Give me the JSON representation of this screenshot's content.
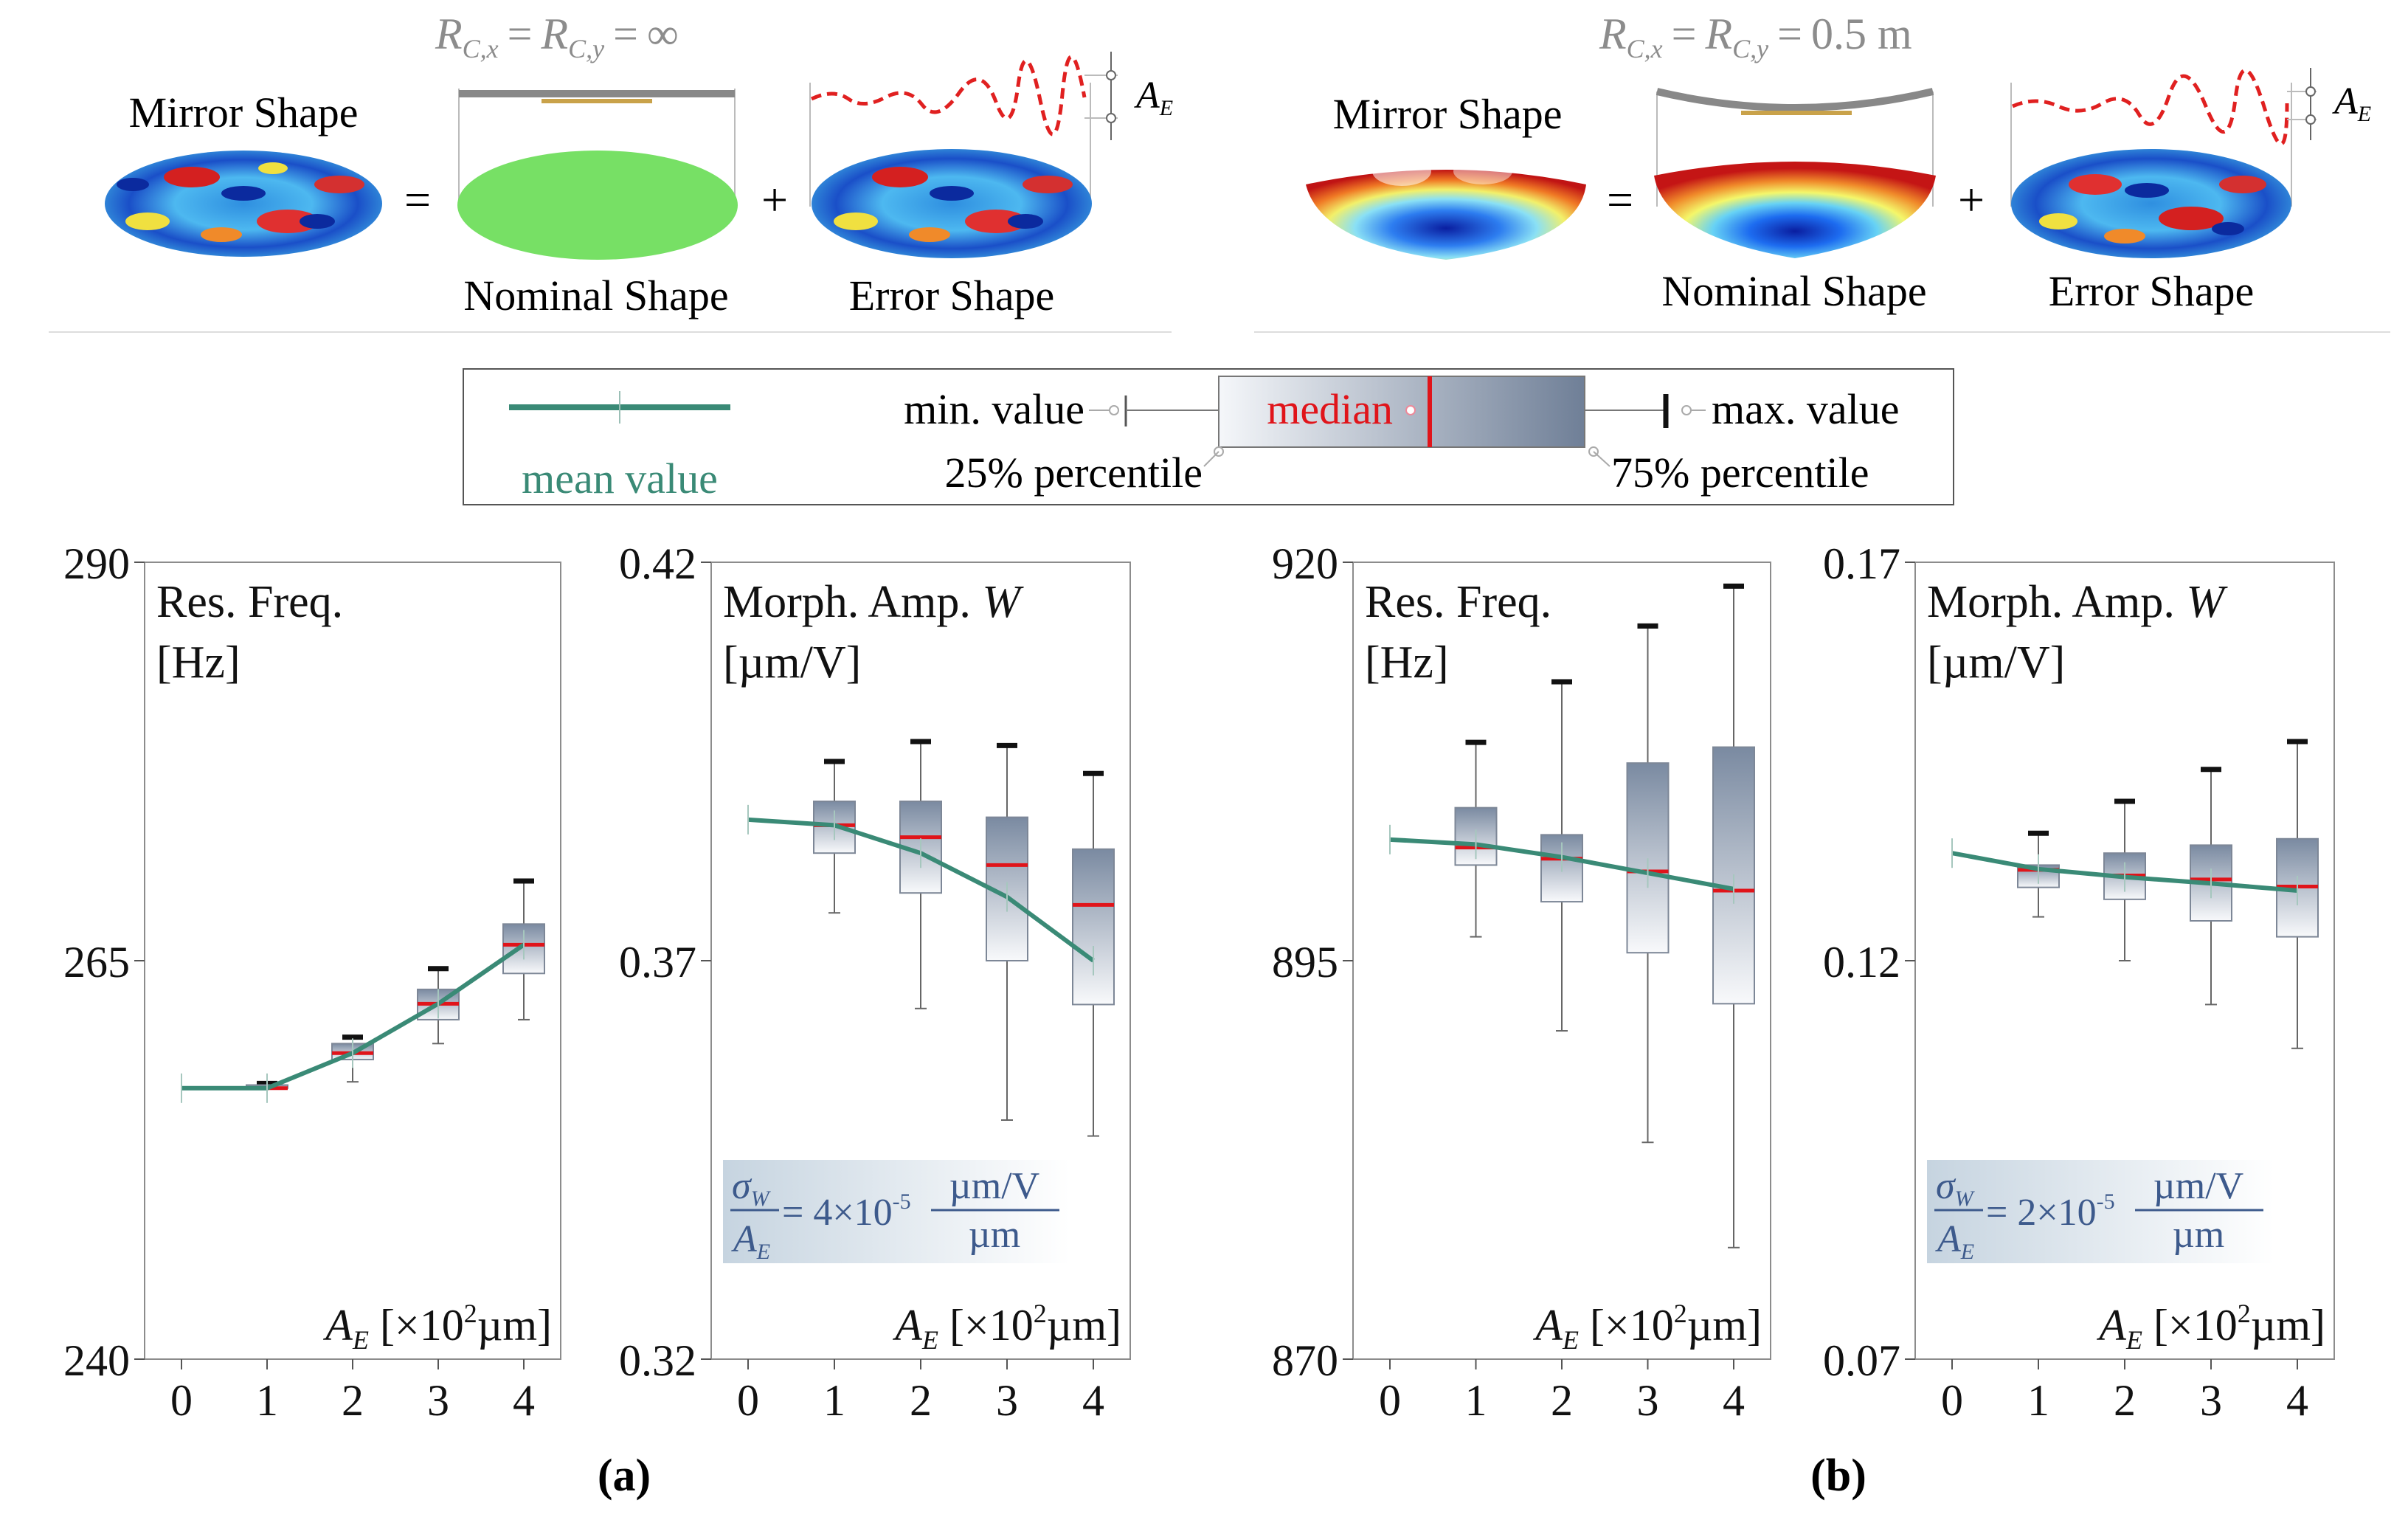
{
  "top": {
    "a": {
      "condition": {
        "R": "R",
        "sub_x": "C,x",
        "sub_y": "C,y",
        "eq": "=",
        "value": "∞"
      },
      "mirror_label": "Mirror Shape",
      "nominal_label": "Nominal Shape",
      "error_label": "Error Shape",
      "equals": "=",
      "plus": "+",
      "ae": {
        "A": "A",
        "sub": "E"
      }
    },
    "b": {
      "condition": {
        "R": "R",
        "sub_x": "C,x",
        "sub_y": "C,y",
        "eq": "=",
        "value": "0.5 m"
      },
      "mirror_label": "Mirror Shape",
      "nominal_label": "Nominal Shape",
      "error_label": "Error Shape",
      "equals": "=",
      "plus": "+",
      "ae": {
        "A": "A",
        "sub": "E"
      }
    }
  },
  "legend": {
    "mean": "mean value",
    "min": "min. value",
    "median": "median",
    "max": "max. value",
    "p25": "25% percentile",
    "p75": "75% percentile"
  },
  "panel_labels": {
    "a": "(a)",
    "b": "(b)"
  },
  "colors": {
    "mean_line": "#3a8a76",
    "median": "#e0141a",
    "box_dark": "#6f7f97",
    "box_light": "#f4f6f9",
    "whisker": "#666666",
    "sigma_text": "#3d5a8c",
    "grey_text": "#8c8c8c"
  },
  "chart_data": [
    {
      "type": "box",
      "title": "Res. Freq.",
      "unit": "[Hz]",
      "xlabel": {
        "A": "A",
        "sub": "E",
        "rest": "[×10",
        "sup": "2",
        "unit": "µm]"
      },
      "ylim": [
        240,
        290
      ],
      "yticks": [
        240,
        265,
        290
      ],
      "yticklabels": [
        "240",
        "265",
        "290"
      ],
      "xticks": [
        0,
        1,
        2,
        3,
        4
      ],
      "mean": [
        257,
        257,
        259.2,
        262.3,
        266
      ],
      "boxes": [
        {
          "x": 1,
          "min": 257,
          "q1": 257,
          "median": 257,
          "q3": 257.2,
          "max": 257.3
        },
        {
          "x": 2,
          "min": 257.4,
          "q1": 258.8,
          "median": 259.2,
          "q3": 259.8,
          "max": 260.2
        },
        {
          "x": 3,
          "min": 259.8,
          "q1": 261.3,
          "median": 262.3,
          "q3": 263.2,
          "max": 264.5
        },
        {
          "x": 4,
          "min": 261.3,
          "q1": 264.2,
          "median": 266,
          "q3": 267.3,
          "max": 270
        }
      ],
      "annotation": null
    },
    {
      "type": "box",
      "title": "Morph. Amp. ",
      "title_var": "W",
      "unit": "[µm/V]",
      "xlabel": {
        "A": "A",
        "sub": "E",
        "rest": "[×10",
        "sup": "2",
        "unit": "µm]"
      },
      "ylim": [
        0.32,
        0.42
      ],
      "yticks": [
        0.32,
        0.37,
        0.42
      ],
      "yticklabels": [
        "0.32",
        "0.37",
        "0.42"
      ],
      "xticks": [
        0,
        1,
        2,
        3,
        4
      ],
      "mean": [
        0.3877,
        0.387,
        0.3835,
        0.378,
        0.37
      ],
      "boxes": [
        {
          "x": 1,
          "min": 0.376,
          "q1": 0.3835,
          "median": 0.387,
          "q3": 0.39,
          "max": 0.395
        },
        {
          "x": 2,
          "min": 0.364,
          "q1": 0.3785,
          "median": 0.3855,
          "q3": 0.39,
          "max": 0.3975
        },
        {
          "x": 3,
          "min": 0.35,
          "q1": 0.37,
          "median": 0.382,
          "q3": 0.388,
          "max": 0.397
        },
        {
          "x": 4,
          "min": 0.348,
          "q1": 0.3645,
          "median": 0.377,
          "q3": 0.384,
          "max": 0.3935
        }
      ],
      "annotation": {
        "sigma": "σ",
        "sigma_sub": "W",
        "A": "A",
        "A_sub": "E",
        "eq": "= 4×10",
        "exp": "-5",
        "num": "µm/V",
        "den": "µm"
      }
    },
    {
      "type": "box",
      "title": "Res. Freq.",
      "unit": "[Hz]",
      "xlabel": {
        "A": "A",
        "sub": "E",
        "rest": "[×10",
        "sup": "2",
        "unit": "µm]"
      },
      "ylim": [
        870,
        920
      ],
      "yticks": [
        870,
        895,
        920
      ],
      "yticklabels": [
        "870",
        "895",
        "920"
      ],
      "xticks": [
        0,
        1,
        2,
        3,
        4
      ],
      "mean": [
        902.6,
        902.3,
        901.5,
        900.5,
        899.5
      ],
      "boxes": [
        {
          "x": 1,
          "min": 896.5,
          "q1": 901.0,
          "median": 902.1,
          "q3": 904.6,
          "max": 908.7
        },
        {
          "x": 2,
          "min": 890.6,
          "q1": 898.7,
          "median": 901.4,
          "q3": 902.9,
          "max": 912.5
        },
        {
          "x": 3,
          "min": 883.6,
          "q1": 895.5,
          "median": 900.6,
          "q3": 907.4,
          "max": 916.0
        },
        {
          "x": 4,
          "min": 877.0,
          "q1": 892.3,
          "median": 899.4,
          "q3": 908.4,
          "max": 918.5
        }
      ],
      "annotation": null
    },
    {
      "type": "box",
      "title": "Morph. Amp. ",
      "title_var": "W",
      "unit": "[µm/V]",
      "xlabel": {
        "A": "A",
        "sub": "E",
        "rest": "[×10",
        "sup": "2",
        "unit": "µm]"
      },
      "ylim": [
        0.07,
        0.17
      ],
      "yticks": [
        0.07,
        0.12,
        0.17
      ],
      "yticklabels": [
        "0.07",
        "0.12",
        "0.17"
      ],
      "xticks": [
        0,
        1,
        2,
        3,
        4
      ],
      "mean": [
        0.1335,
        0.1315,
        0.1305,
        0.1297,
        0.1288
      ],
      "boxes": [
        {
          "x": 1,
          "min": 0.1255,
          "q1": 0.1292,
          "median": 0.1314,
          "q3": 0.132,
          "max": 0.136
        },
        {
          "x": 2,
          "min": 0.12,
          "q1": 0.1277,
          "median": 0.1307,
          "q3": 0.1335,
          "max": 0.14
        },
        {
          "x": 3,
          "min": 0.1145,
          "q1": 0.125,
          "median": 0.1302,
          "q3": 0.1345,
          "max": 0.144
        },
        {
          "x": 4,
          "min": 0.109,
          "q1": 0.123,
          "median": 0.1293,
          "q3": 0.1353,
          "max": 0.1475
        }
      ],
      "annotation": {
        "sigma": "σ",
        "sigma_sub": "W",
        "A": "A",
        "A_sub": "E",
        "eq": "= 2×10",
        "exp": "-5",
        "num": "µm/V",
        "den": "µm"
      }
    }
  ]
}
